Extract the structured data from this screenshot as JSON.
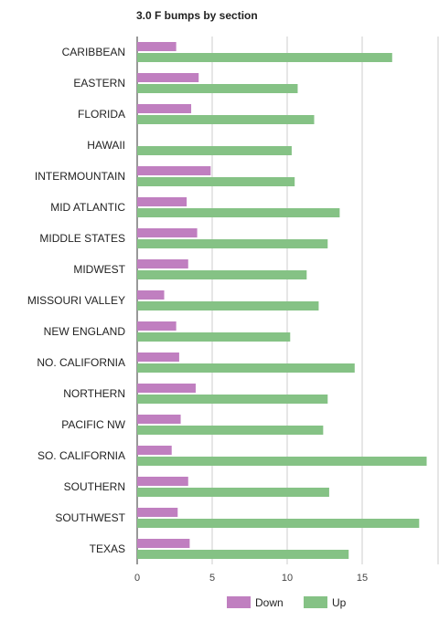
{
  "chart_data": {
    "type": "bar",
    "orientation": "horizontal",
    "title": "3.0 F bumps by section",
    "categories": [
      "CARIBBEAN",
      "EASTERN",
      "FLORIDA",
      "HAWAII",
      "INTERMOUNTAIN",
      "MID ATLANTIC",
      "MIDDLE STATES",
      "MIDWEST",
      "MISSOURI VALLEY",
      "NEW ENGLAND",
      "NO. CALIFORNIA",
      "NORTHERN",
      "PACIFIC NW",
      "SO. CALIFORNIA",
      "SOUTHERN",
      "SOUTHWEST",
      "TEXAS"
    ],
    "series": [
      {
        "name": "Down",
        "color": "#c07fc0",
        "values": [
          2.6,
          4.1,
          3.6,
          0,
          4.9,
          3.3,
          4.0,
          3.4,
          1.8,
          2.6,
          2.8,
          3.9,
          2.9,
          2.3,
          3.4,
          2.7,
          3.5
        ]
      },
      {
        "name": "Up",
        "color": "#85c285",
        "values": [
          17.0,
          10.7,
          11.8,
          10.3,
          10.5,
          13.5,
          12.7,
          11.3,
          12.1,
          10.2,
          14.5,
          12.7,
          12.4,
          19.3,
          12.8,
          18.8,
          14.1
        ]
      }
    ],
    "xlim": [
      0,
      20
    ],
    "xticks": [
      "0",
      "5",
      "10",
      "15"
    ],
    "xlabel": "",
    "ylabel": "",
    "grid": true,
    "legend_position": "bottom"
  }
}
